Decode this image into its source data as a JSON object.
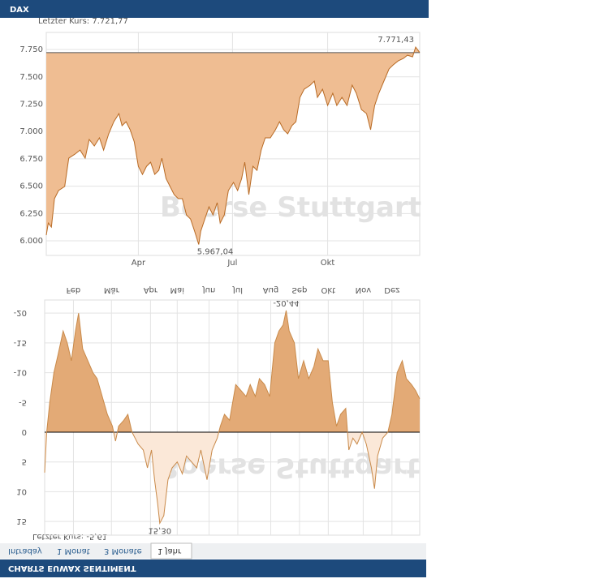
{
  "header_title": "DAX",
  "footer_title": "CHARTS EUWAX SENTIMENT",
  "tabs": [
    "Intraday",
    "1 Monat",
    "3 Monate",
    "1 Jahr"
  ],
  "chart_data": [
    {
      "type": "area",
      "subtitle": "Letzter Kurs: 7.721,77",
      "watermark": "Boerse Stuttgart",
      "fill_to": "last",
      "flipped": false,
      "line_color": "#b86a24",
      "fill_color": "#efbd92",
      "grid": true,
      "annotations": {
        "max": "7.771,43",
        "min": "5.967,04"
      },
      "xlim": [
        0,
        365
      ],
      "xticks": [
        {
          "value": 90,
          "label": "Apr"
        },
        {
          "value": 182,
          "label": "Jul"
        },
        {
          "value": 275,
          "label": "Okt"
        }
      ],
      "ylim": [
        5867,
        7906
      ],
      "yticks": [
        {
          "value": 6000,
          "label": "6.000"
        },
        {
          "value": 6250,
          "label": "6.250"
        },
        {
          "value": 6500,
          "label": "6.500"
        },
        {
          "value": 6750,
          "label": "6.750"
        },
        {
          "value": 7000,
          "label": "7.000"
        },
        {
          "value": 7250,
          "label": "7.250"
        },
        {
          "value": 7500,
          "label": "7.500"
        },
        {
          "value": 7750,
          "label": "7.750"
        }
      ],
      "x": [
        0,
        2,
        5,
        8,
        12,
        18,
        22,
        28,
        33,
        38,
        42,
        47,
        52,
        56,
        61,
        66,
        71,
        74,
        78,
        82,
        86,
        90,
        94,
        98,
        102,
        106,
        110,
        113,
        117,
        121,
        125,
        129,
        133,
        137,
        141,
        145,
        149,
        151,
        155,
        159,
        163,
        167,
        170,
        174,
        178,
        183,
        187,
        191,
        194,
        198,
        202,
        206,
        210,
        214,
        219,
        224,
        228,
        232,
        236,
        240,
        244,
        248,
        252,
        258,
        262,
        265,
        270,
        275,
        280,
        284,
        289,
        294,
        299,
        303,
        308,
        313,
        317,
        321,
        325,
        330,
        335,
        339,
        344,
        349,
        353,
        358,
        361,
        365
      ],
      "values": [
        6052,
        6163,
        6126,
        6386,
        6460,
        6497,
        6756,
        6793,
        6830,
        6756,
        6927,
        6868,
        6942,
        6830,
        6979,
        7090,
        7164,
        7053,
        7090,
        7016,
        6905,
        6682,
        6608,
        6682,
        6719,
        6608,
        6645,
        6756,
        6571,
        6497,
        6423,
        6386,
        6386,
        6237,
        6200,
        6089,
        5967.04,
        6089,
        6200,
        6311,
        6237,
        6349,
        6163,
        6237,
        6460,
        6534,
        6460,
        6571,
        6719,
        6423,
        6682,
        6645,
        6830,
        6942,
        6942,
        7016,
        7090,
        7016,
        6979,
        7053,
        7090,
        7312,
        7386,
        7424,
        7461,
        7312,
        7386,
        7238,
        7350,
        7238,
        7312,
        7238,
        7424,
        7350,
        7201,
        7164,
        7016,
        7238,
        7350,
        7461,
        7572,
        7609,
        7646,
        7668,
        7698,
        7683,
        7771.43,
        7721.77
      ]
    },
    {
      "type": "area",
      "subtitle": "Letzter Kurs: -5,61",
      "watermark": "Boerse Stuttgart",
      "fill_to": "zero",
      "flipped": true,
      "line_color": "#c98a4a",
      "fill_color": "#e3aa76",
      "fill_color_positive": "#fbe8d8",
      "grid": true,
      "zero_line": true,
      "annotations": {
        "min": "-20,44",
        "max": "15,30"
      },
      "xlim": [
        0,
        365
      ],
      "xticks": [
        {
          "value": 28,
          "label": "Feb"
        },
        {
          "value": 65,
          "label": "Mär"
        },
        {
          "value": 103,
          "label": "Apr"
        },
        {
          "value": 129,
          "label": "Mai"
        },
        {
          "value": 160,
          "label": "Jun"
        },
        {
          "value": 188,
          "label": "Jul"
        },
        {
          "value": 220,
          "label": "Aug"
        },
        {
          "value": 248,
          "label": "Sep"
        },
        {
          "value": 276,
          "label": "Okt"
        },
        {
          "value": 310,
          "label": "Nov"
        },
        {
          "value": 338,
          "label": "Dez"
        }
      ],
      "ylim": [
        -22.2,
        17.3
      ],
      "yticks": [
        -20,
        -15,
        -10,
        -5,
        0,
        5,
        10,
        15
      ],
      "x": [
        0,
        2,
        5,
        9,
        13,
        18,
        22,
        26,
        30,
        33,
        37,
        42,
        47,
        51,
        56,
        61,
        66,
        69,
        72,
        77,
        81,
        85,
        91,
        96,
        100,
        104,
        107,
        110,
        112,
        116,
        120,
        124,
        129,
        134,
        138,
        143,
        148,
        152,
        158,
        163,
        168,
        171,
        175,
        180,
        186,
        191,
        196,
        200,
        205,
        209,
        214,
        219,
        224,
        228,
        232,
        235,
        238,
        243,
        247,
        252,
        257,
        262,
        266,
        271,
        276,
        280,
        284,
        288,
        293,
        296,
        300,
        304,
        309,
        313,
        318,
        321,
        324,
        329,
        334,
        338,
        343,
        348,
        352,
        357,
        361,
        365
      ],
      "values": [
        6.8,
        0,
        -5,
        -10,
        -13,
        -17,
        -15,
        -12,
        -17,
        -20,
        -14,
        -12,
        -10,
        -9,
        -6,
        -3,
        -1,
        1.5,
        -1,
        -2,
        -3,
        0,
        2,
        3,
        6,
        3,
        8,
        12,
        15.3,
        14,
        8,
        6,
        5,
        7,
        4,
        5,
        6,
        3,
        8,
        3,
        1,
        -1,
        -3,
        -2,
        -8,
        -7,
        -6,
        -8,
        -6,
        -9,
        -8,
        -6,
        -15,
        -17,
        -18,
        -20.44,
        -17,
        -15,
        -9,
        -12,
        -9,
        -11,
        -14,
        -12,
        -12,
        -5,
        -1,
        -3,
        -4,
        3,
        1,
        2,
        0,
        2,
        6,
        9.5,
        4,
        1,
        0,
        -3,
        -10,
        -12,
        -9,
        -8,
        -7,
        -5.61
      ]
    }
  ]
}
